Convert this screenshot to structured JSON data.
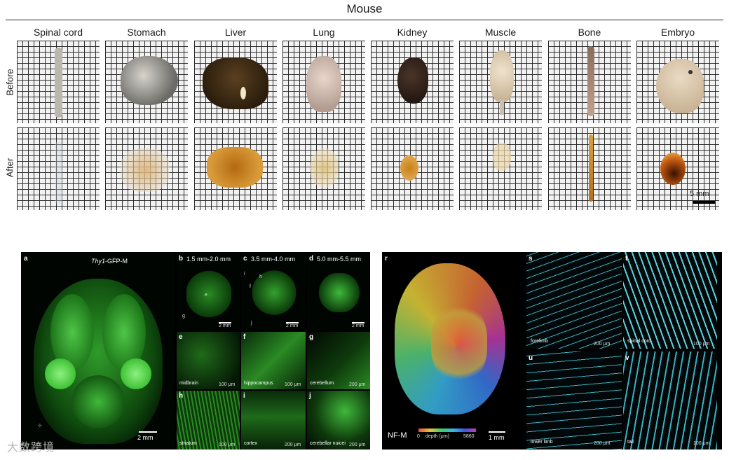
{
  "top_figure": {
    "title": "Mouse",
    "columns": [
      "Spinal cord",
      "Stomach",
      "Liver",
      "Lung",
      "Kidney",
      "Muscle",
      "Bone",
      "Embryo"
    ],
    "rows": [
      "Before",
      "After"
    ],
    "scale_bar": "5 mm"
  },
  "panel_left": {
    "a": {
      "label": "a",
      "title_italic": "Thy1",
      "title_rest": "-GFP-M",
      "scale": "2 mm"
    },
    "b": {
      "label": "b",
      "depth": "1.5 mm-2.0 mm",
      "scale": "2 mm",
      "inset_e": "e",
      "inset_g": "g"
    },
    "c": {
      "label": "c",
      "depth": "3.5 mm-4.0 mm",
      "scale": "2 mm",
      "inset_i": "i",
      "inset_h": "h",
      "inset_f": "f",
      "inset_j": "j"
    },
    "d": {
      "label": "d",
      "depth": "5.0 mm-5.5 mm",
      "scale": "2 mm"
    },
    "tiles": [
      {
        "label": "e",
        "caption": "midbrain",
        "scale": "100 μm"
      },
      {
        "label": "f",
        "caption": "hippocampus",
        "scale": "100 μm"
      },
      {
        "label": "g",
        "caption": "cerebellum",
        "scale": "200 μm"
      },
      {
        "label": "h",
        "caption": "striatum",
        "scale": "100 μm"
      },
      {
        "label": "i",
        "caption": "cortex",
        "scale": "200 μm"
      },
      {
        "label": "j",
        "caption": "cerebellar nuicei",
        "scale": "200 μm"
      }
    ]
  },
  "panel_right": {
    "r": {
      "label": "r",
      "marker": "NF-M",
      "depth_min": "0",
      "depth_label": "depth (μm)",
      "depth_max": "5860",
      "scale": "1 mm"
    },
    "tiles": [
      {
        "label": "s",
        "caption": "forelimb",
        "scale": "200 μm"
      },
      {
        "label": "t",
        "caption": "spinal cord",
        "scale": "100 μm"
      },
      {
        "label": "u",
        "caption": "lower limb",
        "scale": "200 μm"
      },
      {
        "label": "v",
        "caption": "tail",
        "scale": "100 μm"
      }
    ]
  },
  "watermark": "大数跨境",
  "colors": {
    "gfp": "#3fd43a",
    "neuron_cyan": "#6fe4ec",
    "grid_line": "#2c2c2c"
  }
}
